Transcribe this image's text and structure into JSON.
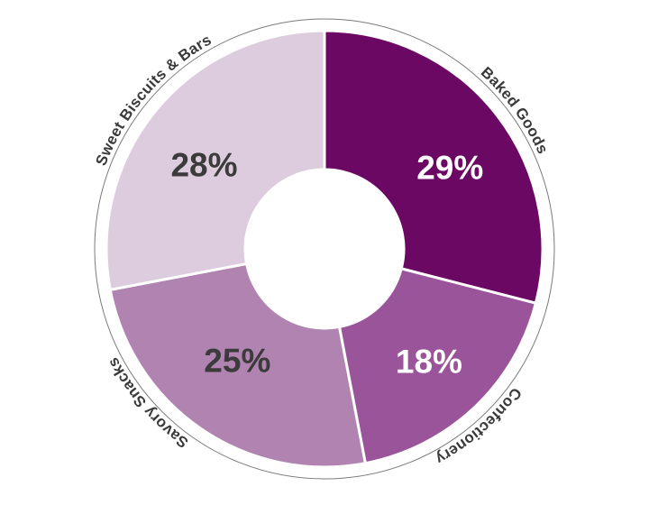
{
  "chart_data": {
    "type": "pie",
    "variant": "donut",
    "title": "",
    "direction": "clockwise",
    "start_angle_deg": 0,
    "legend_position": "labels-curved-around-outer-ring",
    "grid": false,
    "segments": [
      {
        "label": "Baked Goods",
        "value": 29,
        "value_label": "29%",
        "color": "#6b0863",
        "value_label_color": "#ffffff"
      },
      {
        "label": "Confectionery",
        "value": 18,
        "value_label": "18%",
        "color": "#9a5499",
        "value_label_color": "#ffffff"
      },
      {
        "label": "Savory Snacks",
        "value": 25,
        "value_label": "25%",
        "color": "#b083b1",
        "value_label_color": "#3b3b3b"
      },
      {
        "label": "Sweet Biscuits & Bars",
        "value": 28,
        "value_label": "28%",
        "color": "#ddcbde",
        "value_label_color": "#3b3b3b"
      }
    ],
    "category_label_color": "#3a3a3a",
    "outer_ring_color": "#7a7a7a",
    "hole_color": "#ffffff",
    "slice_border_color": "#ffffff",
    "background_color": "#ffffff"
  }
}
